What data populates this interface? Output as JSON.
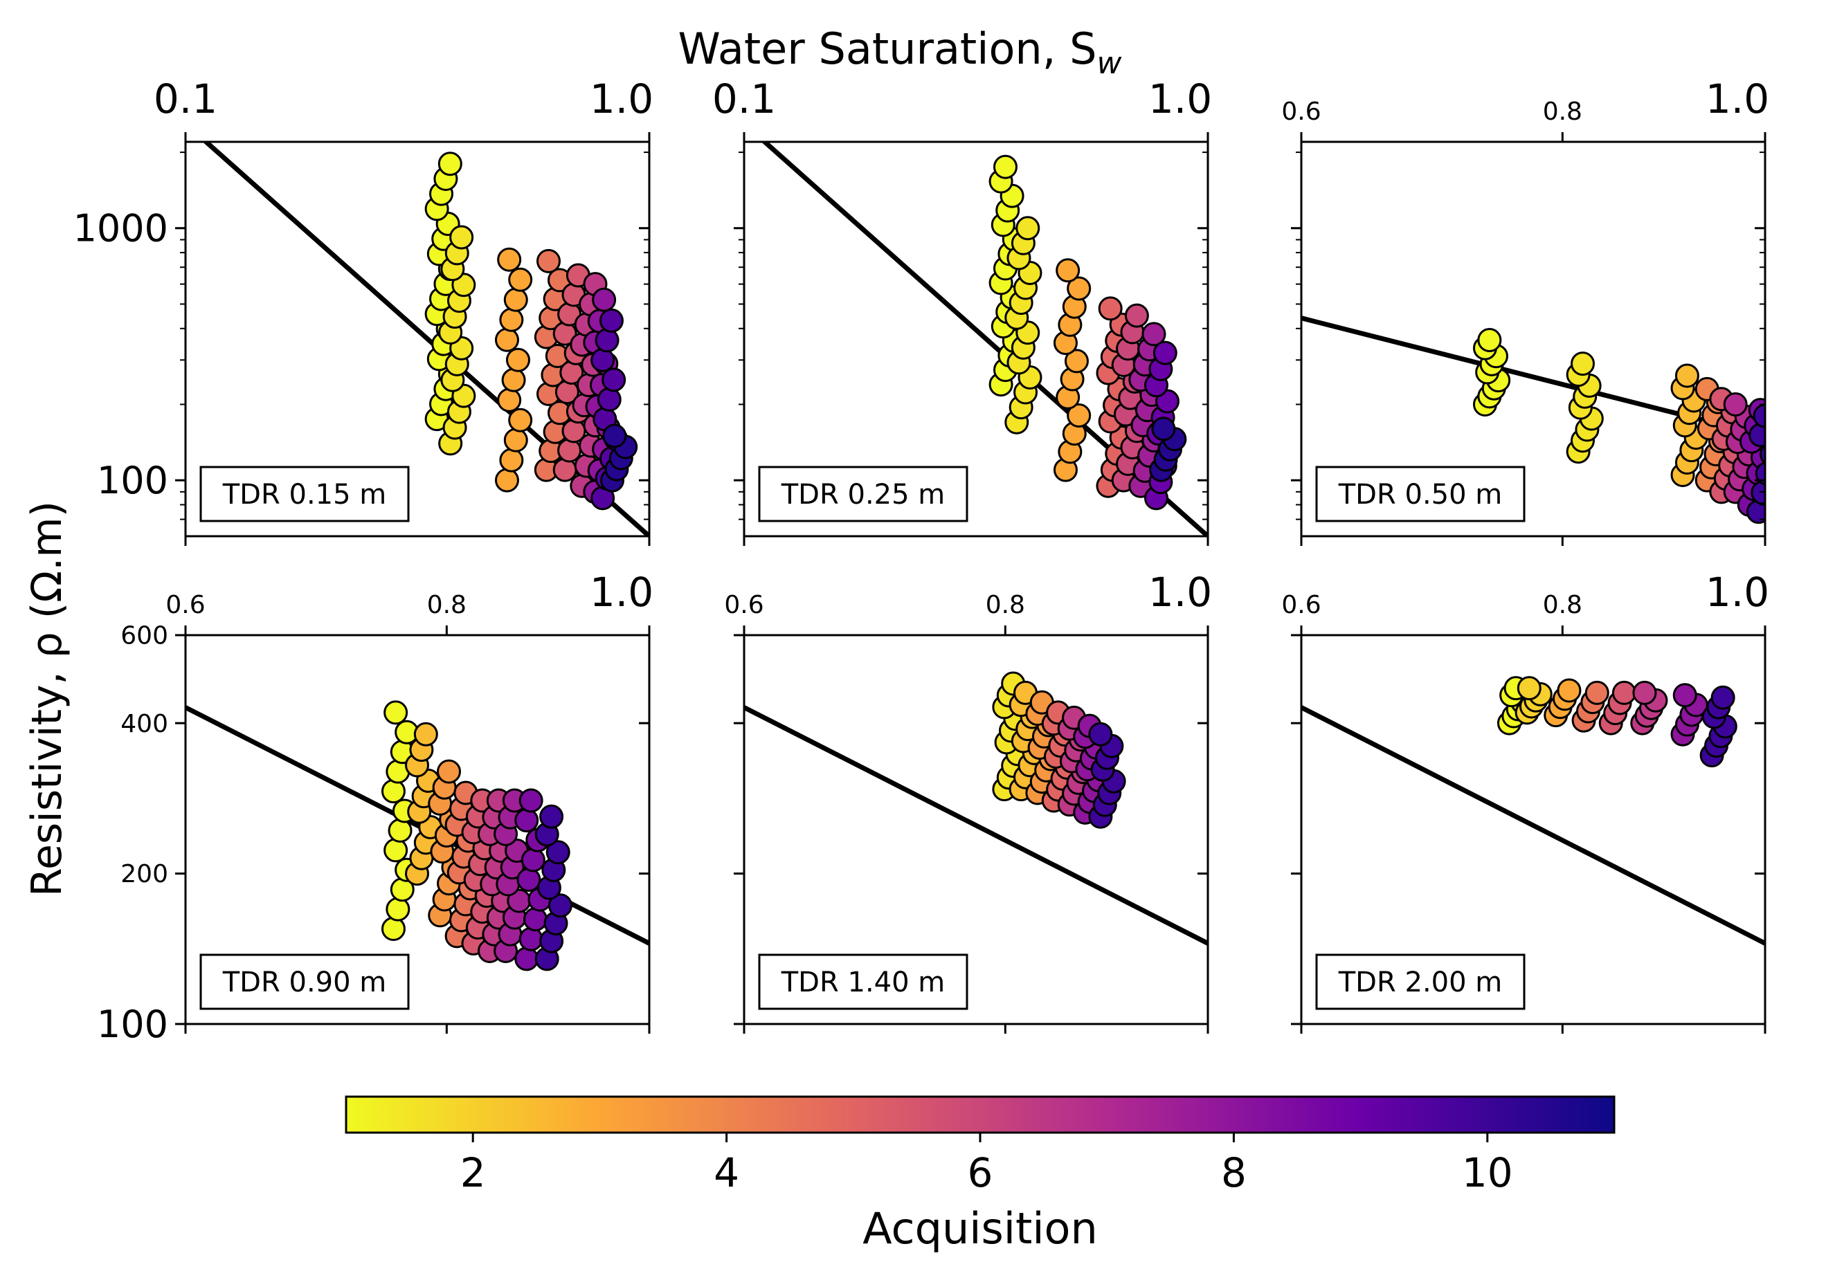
{
  "figure": {
    "top_label": "Water Saturation, S",
    "top_label_sub": "w",
    "ylabel": "Resistivity, ρ (Ω.m)"
  },
  "chart_data": [
    {
      "type": "scatter",
      "panel_label": "TDR 0.15 m",
      "xscale": "log",
      "xlim": [
        0.1,
        1.0
      ],
      "x_ticks": [
        {
          "v": 0.1,
          "t": "0.1",
          "size": "large"
        },
        {
          "v": 1.0,
          "t": "1.0",
          "size": "large"
        }
      ],
      "yscale": "log",
      "ylim": [
        60,
        2200
      ],
      "y_ticks": [
        {
          "v": 100,
          "t": "100"
        },
        {
          "v": 1000,
          "t": "1000"
        }
      ],
      "y_minor": [
        70,
        80,
        90,
        200,
        300,
        400,
        500,
        600,
        700,
        800,
        900,
        2000
      ],
      "fit_line": {
        "x": [
          0.1,
          1.0
        ],
        "y": [
          2600,
          60
        ]
      },
      "clusters": [
        {
          "x": 0.36,
          "y_min": 175,
          "y_max": 1800,
          "acq": 1,
          "n": 18
        },
        {
          "x": 0.385,
          "y_min": 140,
          "y_max": 920,
          "acq": 1.5,
          "n": 14
        },
        {
          "x": 0.51,
          "y_min": 100,
          "y_max": 750,
          "acq": 3,
          "n": 12
        },
        {
          "x": 0.62,
          "y_min": 110,
          "y_max": 740,
          "acq": 4.5,
          "n": 12
        },
        {
          "x": 0.68,
          "y_min": 110,
          "y_max": 650,
          "acq": 5.5,
          "n": 11
        },
        {
          "x": 0.74,
          "y_min": 95,
          "y_max": 600,
          "acq": 6.5,
          "n": 11
        },
        {
          "x": 0.79,
          "y_min": 90,
          "y_max": 520,
          "acq": 8,
          "n": 10
        },
        {
          "x": 0.82,
          "y_min": 85,
          "y_max": 430,
          "acq": 9.5,
          "n": 10
        },
        {
          "x": 0.86,
          "y_min": 100,
          "y_max": 150,
          "acq": 10.5,
          "n": 5
        }
      ]
    },
    {
      "type": "scatter",
      "panel_label": "TDR 0.25 m",
      "xscale": "log",
      "xlim": [
        0.1,
        1.0
      ],
      "x_ticks": [
        {
          "v": 0.1,
          "t": "0.1",
          "size": "large"
        },
        {
          "v": 1.0,
          "t": "1.0",
          "size": "large"
        }
      ],
      "yscale": "log",
      "ylim": [
        60,
        2200
      ],
      "y_ticks": [
        {
          "v": 100,
          "t": ""
        },
        {
          "v": 1000,
          "t": ""
        }
      ],
      "y_minor": [
        70,
        80,
        90,
        200,
        300,
        400,
        500,
        600,
        700,
        800,
        900,
        2000
      ],
      "fit_line": {
        "x": [
          0.1,
          1.0
        ],
        "y": [
          2600,
          60
        ]
      },
      "clusters": [
        {
          "x": 0.37,
          "y_min": 240,
          "y_max": 1750,
          "acq": 1,
          "n": 16
        },
        {
          "x": 0.4,
          "y_min": 170,
          "y_max": 1000,
          "acq": 1.5,
          "n": 14
        },
        {
          "x": 0.51,
          "y_min": 110,
          "y_max": 680,
          "acq": 3,
          "n": 12
        },
        {
          "x": 0.63,
          "y_min": 95,
          "y_max": 480,
          "acq": 5,
          "n": 12
        },
        {
          "x": 0.68,
          "y_min": 100,
          "y_max": 450,
          "acq": 6,
          "n": 11
        },
        {
          "x": 0.74,
          "y_min": 95,
          "y_max": 380,
          "acq": 7.5,
          "n": 11
        },
        {
          "x": 0.8,
          "y_min": 85,
          "y_max": 320,
          "acq": 9,
          "n": 10
        },
        {
          "x": 0.82,
          "y_min": 110,
          "y_max": 160,
          "acq": 10.5,
          "n": 5
        }
      ]
    },
    {
      "type": "scatter",
      "panel_label": "TDR 0.50 m",
      "xscale": "log",
      "xlim": [
        0.6,
        1.0
      ],
      "x_ticks": [
        {
          "v": 0.6,
          "t": "0.6",
          "size": "small"
        },
        {
          "v": 0.8,
          "t": "0.8",
          "size": "small"
        },
        {
          "v": 1.0,
          "t": "1.0",
          "size": "large"
        }
      ],
      "yscale": "log",
      "ylim": [
        60,
        2200
      ],
      "y_ticks": [
        {
          "v": 100,
          "t": ""
        },
        {
          "v": 1000,
          "t": ""
        }
      ],
      "y_minor": [
        70,
        80,
        90,
        200,
        300,
        400,
        500,
        600,
        700,
        800,
        900,
        2000
      ],
      "fit_line": {
        "x": [
          0.6,
          1.0
        ],
        "y": [
          440,
          150
        ]
      },
      "clusters": [
        {
          "x": 0.74,
          "y_min": 200,
          "y_max": 360,
          "acq": 1,
          "n": 9
        },
        {
          "x": 0.82,
          "y_min": 130,
          "y_max": 290,
          "acq": 1.5,
          "n": 9
        },
        {
          "x": 0.92,
          "y_min": 105,
          "y_max": 260,
          "acq": 2.5,
          "n": 9
        },
        {
          "x": 0.945,
          "y_min": 100,
          "y_max": 230,
          "acq": 4,
          "n": 8
        },
        {
          "x": 0.96,
          "y_min": 90,
          "y_max": 210,
          "acq": 5.5,
          "n": 8
        },
        {
          "x": 0.975,
          "y_min": 90,
          "y_max": 200,
          "acq": 7,
          "n": 8
        },
        {
          "x": 0.99,
          "y_min": 80,
          "y_max": 190,
          "acq": 8.5,
          "n": 7
        },
        {
          "x": 1.0,
          "y_min": 75,
          "y_max": 180,
          "acq": 10,
          "n": 6
        }
      ]
    },
    {
      "type": "scatter",
      "panel_label": "TDR 0.90 m",
      "xscale": "log",
      "xlim": [
        0.6,
        1.0
      ],
      "x_ticks": [
        {
          "v": 0.6,
          "t": "0.6",
          "size": "small"
        },
        {
          "v": 0.8,
          "t": "0.8",
          "size": "small"
        },
        {
          "v": 1.0,
          "t": "1.0",
          "size": "large"
        }
      ],
      "yscale": "log",
      "ylim": [
        100,
        600
      ],
      "y_ticks": [
        {
          "v": 100,
          "t": "100",
          "size": "large"
        },
        {
          "v": 200,
          "t": "200",
          "size": "small"
        },
        {
          "v": 400,
          "t": "400",
          "size": "small"
        },
        {
          "v": 600,
          "t": "600",
          "size": "small"
        }
      ],
      "y_minor": [],
      "fit_line": {
        "x": [
          0.6,
          1.0
        ],
        "y": [
          430,
          145
        ]
      },
      "clusters": [
        {
          "x": 0.76,
          "y_min": 155,
          "y_max": 420,
          "acq": 1,
          "n": 12
        },
        {
          "x": 0.78,
          "y_min": 200,
          "y_max": 380,
          "acq": 2.5,
          "n": 10
        },
        {
          "x": 0.8,
          "y_min": 165,
          "y_max": 320,
          "acq": 3.5,
          "n": 10
        },
        {
          "x": 0.815,
          "y_min": 150,
          "y_max": 290,
          "acq": 4.5,
          "n": 10
        },
        {
          "x": 0.83,
          "y_min": 145,
          "y_max": 280,
          "acq": 5.5,
          "n": 10
        },
        {
          "x": 0.845,
          "y_min": 140,
          "y_max": 280,
          "acq": 6.5,
          "n": 10
        },
        {
          "x": 0.86,
          "y_min": 140,
          "y_max": 280,
          "acq": 7.5,
          "n": 10
        },
        {
          "x": 0.88,
          "y_min": 135,
          "y_max": 280,
          "acq": 8.5,
          "n": 9
        },
        {
          "x": 0.9,
          "y_min": 135,
          "y_max": 260,
          "acq": 10,
          "n": 9
        }
      ]
    },
    {
      "type": "scatter",
      "panel_label": "TDR 1.40 m",
      "xscale": "log",
      "xlim": [
        0.6,
        1.0
      ],
      "x_ticks": [
        {
          "v": 0.6,
          "t": "0.6",
          "size": "small"
        },
        {
          "v": 0.8,
          "t": "0.8",
          "size": "small"
        },
        {
          "v": 1.0,
          "t": "1.0",
          "size": "large"
        }
      ],
      "yscale": "log",
      "ylim": [
        100,
        600
      ],
      "y_ticks": [
        {
          "v": 100,
          "t": ""
        },
        {
          "v": 200,
          "t": ""
        },
        {
          "v": 400,
          "t": ""
        },
        {
          "v": 600,
          "t": ""
        }
      ],
      "y_minor": [],
      "fit_line": {
        "x": [
          0.6,
          1.0
        ],
        "y": [
          430,
          145
        ]
      },
      "clusters": [
        {
          "x": 0.805,
          "y_min": 295,
          "y_max": 480,
          "acq": 1.5,
          "n": 10
        },
        {
          "x": 0.82,
          "y_min": 295,
          "y_max": 460,
          "acq": 2.5,
          "n": 9
        },
        {
          "x": 0.835,
          "y_min": 290,
          "y_max": 440,
          "acq": 3.5,
          "n": 9
        },
        {
          "x": 0.85,
          "y_min": 280,
          "y_max": 420,
          "acq": 5,
          "n": 9
        },
        {
          "x": 0.865,
          "y_min": 275,
          "y_max": 410,
          "acq": 6.5,
          "n": 9
        },
        {
          "x": 0.88,
          "y_min": 265,
          "y_max": 395,
          "acq": 8,
          "n": 9
        },
        {
          "x": 0.895,
          "y_min": 260,
          "y_max": 380,
          "acq": 10,
          "n": 8
        }
      ]
    },
    {
      "type": "scatter",
      "panel_label": "TDR 2.00 m",
      "xscale": "log",
      "xlim": [
        0.6,
        1.0
      ],
      "x_ticks": [
        {
          "v": 0.6,
          "t": "0.6",
          "size": "small"
        },
        {
          "v": 0.8,
          "t": "0.8",
          "size": "small"
        },
        {
          "v": 1.0,
          "t": "1.0",
          "size": "large"
        }
      ],
      "yscale": "log",
      "ylim": [
        100,
        600
      ],
      "y_ticks": [
        {
          "v": 100,
          "t": ""
        },
        {
          "v": 200,
          "t": ""
        },
        {
          "v": 400,
          "t": ""
        },
        {
          "v": 600,
          "t": ""
        }
      ],
      "y_minor": [],
      "fit_line": {
        "x": [
          0.6,
          1.0
        ],
        "y": [
          430,
          145
        ]
      },
      "clusters": [
        {
          "x": 0.76,
          "y_min": 400,
          "y_max": 470,
          "acq": 1,
          "n": 6
        },
        {
          "x": 0.775,
          "y_min": 420,
          "y_max": 470,
          "acq": 2,
          "n": 5
        },
        {
          "x": 0.8,
          "y_min": 415,
          "y_max": 465,
          "acq": 3,
          "n": 4
        },
        {
          "x": 0.825,
          "y_min": 405,
          "y_max": 460,
          "acq": 4.5,
          "n": 4
        },
        {
          "x": 0.85,
          "y_min": 400,
          "y_max": 460,
          "acq": 5.5,
          "n": 4
        },
        {
          "x": 0.88,
          "y_min": 400,
          "y_max": 460,
          "acq": 6.5,
          "n": 5
        },
        {
          "x": 0.92,
          "y_min": 380,
          "y_max": 455,
          "acq": 8,
          "n": 5
        },
        {
          "x": 0.95,
          "y_min": 345,
          "y_max": 450,
          "acq": 10,
          "n": 7
        }
      ]
    }
  ],
  "colorbar": {
    "label": "Acquisition",
    "colormap": "plasma_r",
    "range": [
      1,
      11
    ],
    "ticks": [
      2,
      4,
      6,
      8,
      10
    ],
    "tick_labels": [
      "2",
      "4",
      "6",
      "8",
      "10"
    ],
    "colors": [
      "#f0f921",
      "#fca636",
      "#e16462",
      "#b12a90",
      "#6a00a8",
      "#0d0887"
    ]
  }
}
